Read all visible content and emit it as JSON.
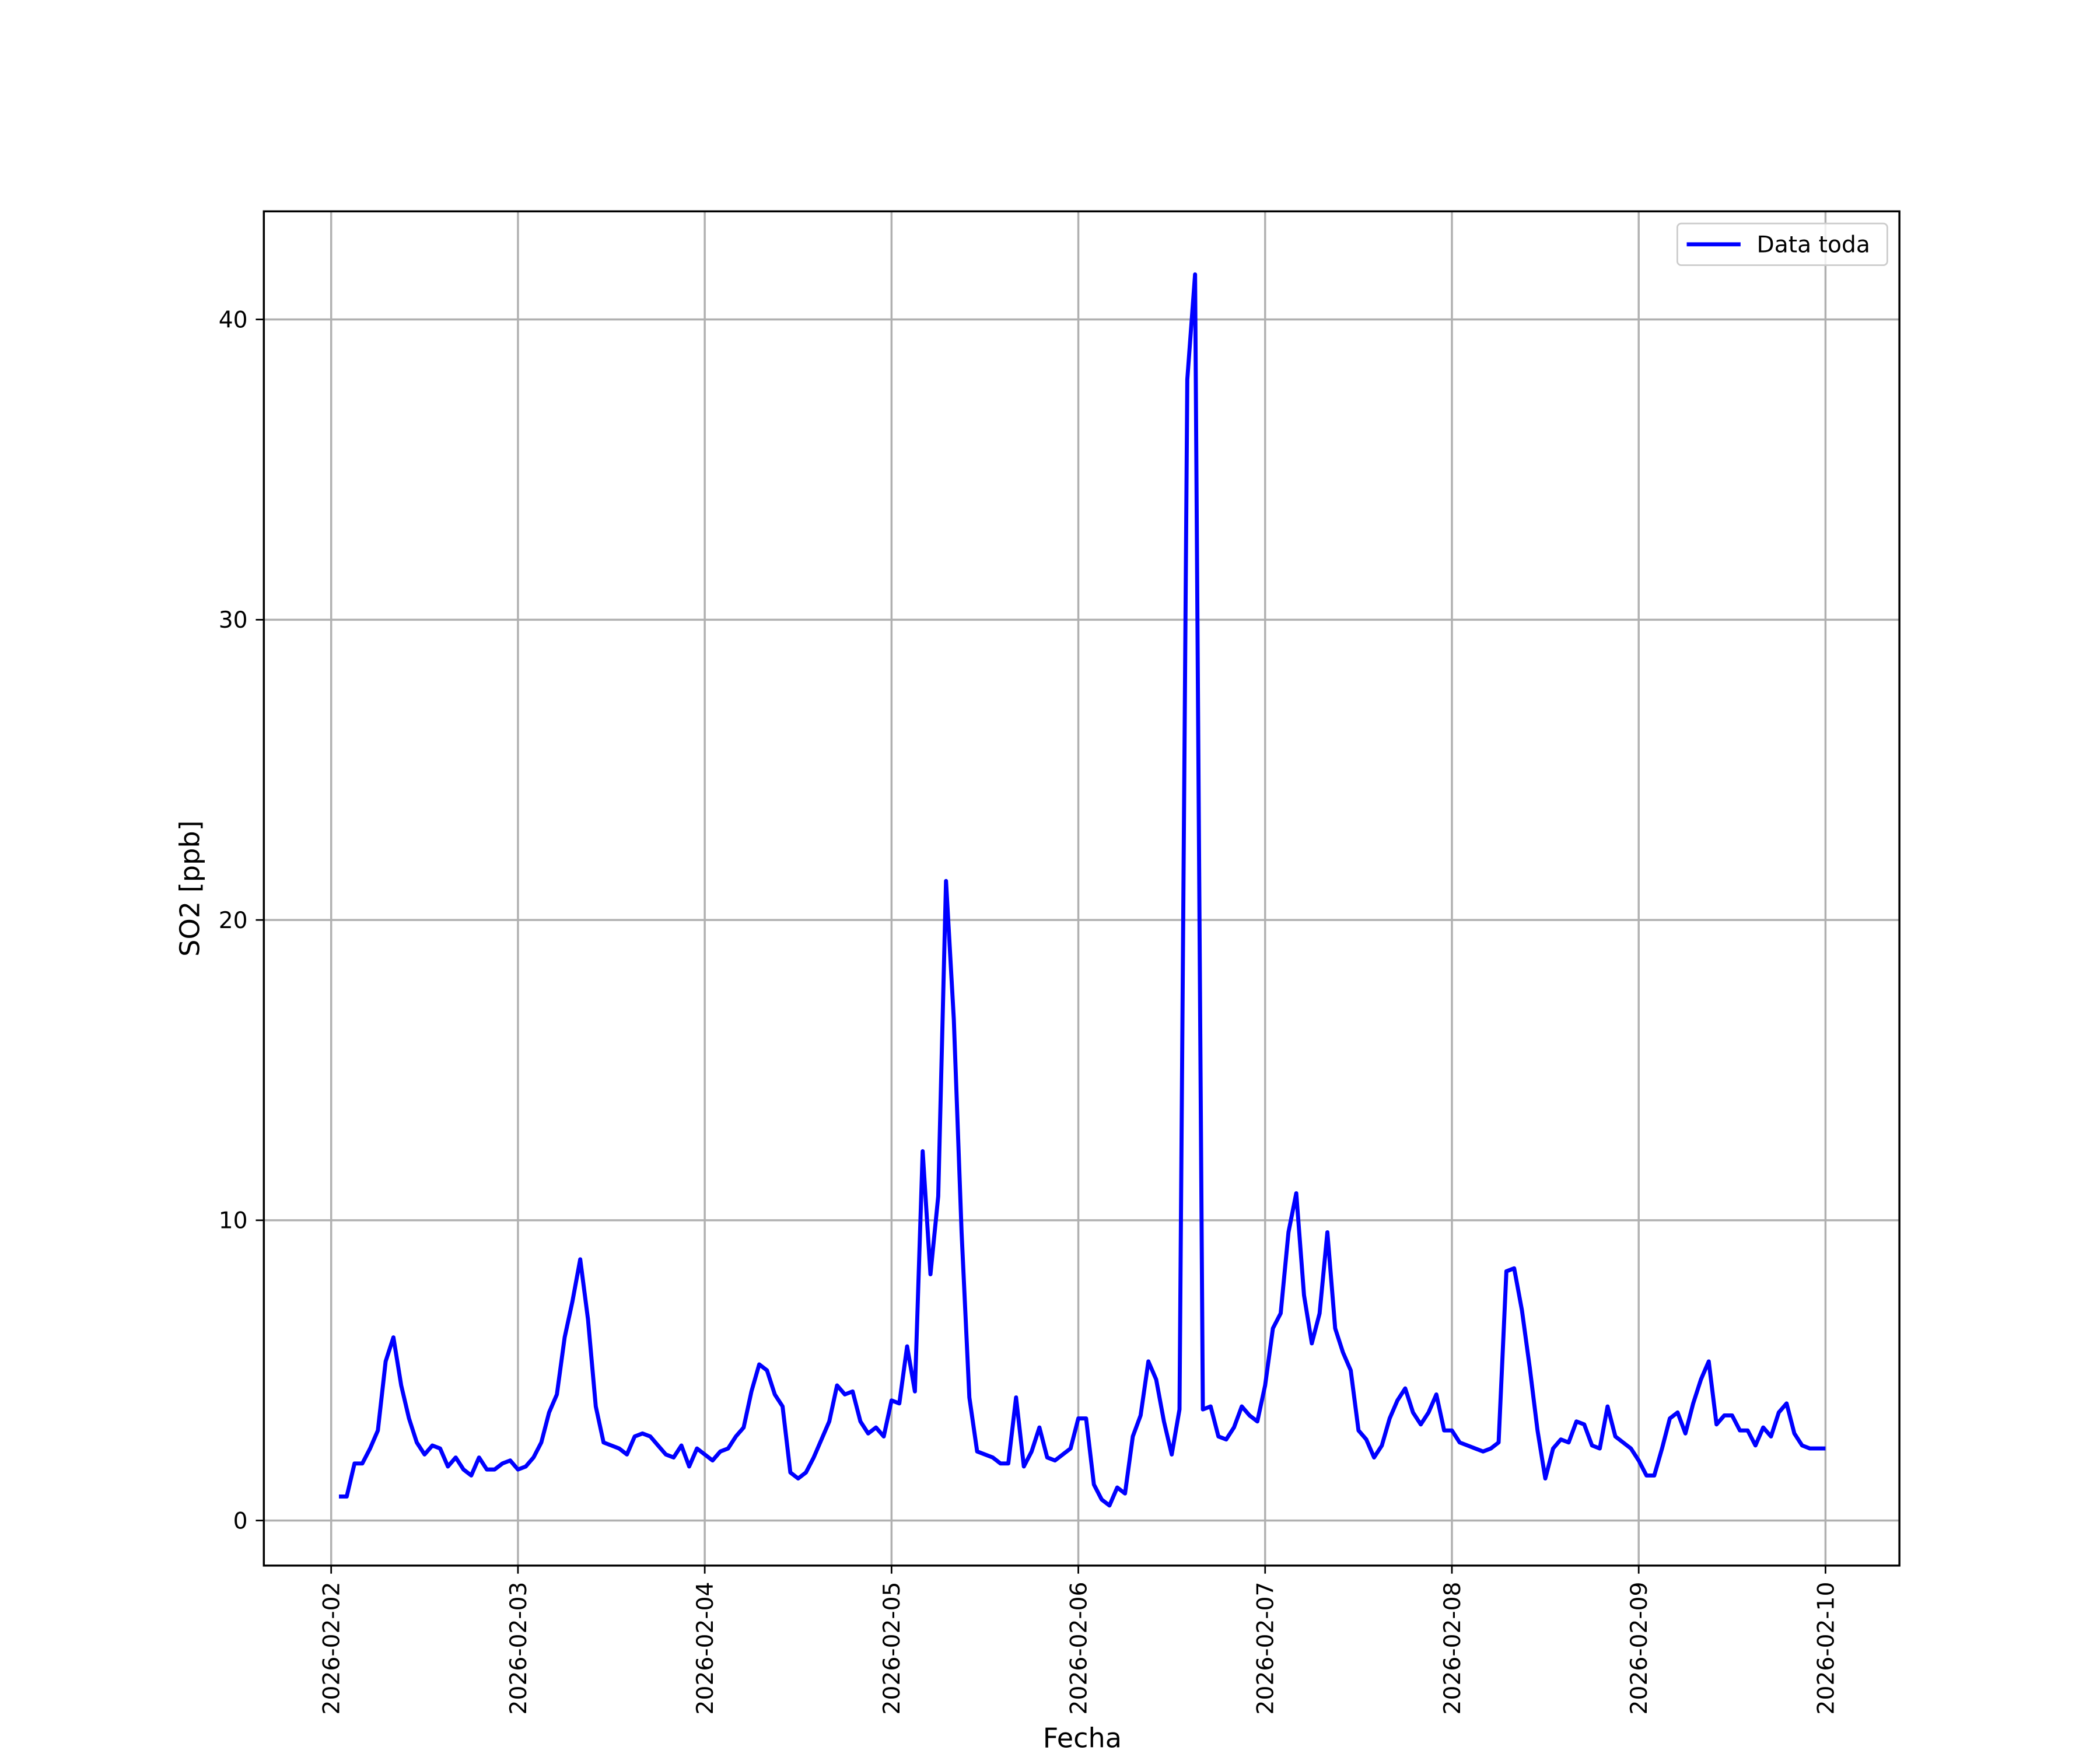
{
  "chart_data": {
    "type": "line",
    "x_label": "Fecha",
    "y_label": "SO2 [ppb]",
    "x": [
      "2026-02-02T01:00",
      "2026-02-02T02:00",
      "2026-02-02T03:00",
      "2026-02-02T04:00",
      "2026-02-02T05:00",
      "2026-02-02T06:00",
      "2026-02-02T07:00",
      "2026-02-02T08:00",
      "2026-02-02T09:00",
      "2026-02-02T10:00",
      "2026-02-02T11:00",
      "2026-02-02T12:00",
      "2026-02-02T13:00",
      "2026-02-02T14:00",
      "2026-02-02T15:00",
      "2026-02-02T16:00",
      "2026-02-02T17:00",
      "2026-02-02T18:00",
      "2026-02-02T19:00",
      "2026-02-02T20:00",
      "2026-02-02T21:00",
      "2026-02-02T22:00",
      "2026-02-02T23:00",
      "2026-02-03T00:00",
      "2026-02-03T01:00",
      "2026-02-03T02:00",
      "2026-02-03T03:00",
      "2026-02-03T04:00",
      "2026-02-03T05:00",
      "2026-02-03T06:00",
      "2026-02-03T07:00",
      "2026-02-03T08:00",
      "2026-02-03T09:00",
      "2026-02-03T10:00",
      "2026-02-03T11:00",
      "2026-02-03T12:00",
      "2026-02-03T13:00",
      "2026-02-03T14:00",
      "2026-02-03T15:00",
      "2026-02-03T16:00",
      "2026-02-03T17:00",
      "2026-02-03T18:00",
      "2026-02-03T19:00",
      "2026-02-03T20:00",
      "2026-02-03T21:00",
      "2026-02-03T22:00",
      "2026-02-03T23:00",
      "2026-02-04T00:00",
      "2026-02-04T01:00",
      "2026-02-04T02:00",
      "2026-02-04T03:00",
      "2026-02-04T04:00",
      "2026-02-04T05:00",
      "2026-02-04T06:00",
      "2026-02-04T07:00",
      "2026-02-04T08:00",
      "2026-02-04T09:00",
      "2026-02-04T10:00",
      "2026-02-04T11:00",
      "2026-02-04T12:00",
      "2026-02-04T13:00",
      "2026-02-04T14:00",
      "2026-02-04T15:00",
      "2026-02-04T16:00",
      "2026-02-04T17:00",
      "2026-02-04T18:00",
      "2026-02-04T19:00",
      "2026-02-04T20:00",
      "2026-02-04T21:00",
      "2026-02-04T22:00",
      "2026-02-04T23:00",
      "2026-02-05T00:00",
      "2026-02-05T01:00",
      "2026-02-05T02:00",
      "2026-02-05T03:00",
      "2026-02-05T04:00",
      "2026-02-05T05:00",
      "2026-02-05T06:00",
      "2026-02-05T07:00",
      "2026-02-05T08:00",
      "2026-02-05T09:00",
      "2026-02-05T10:00",
      "2026-02-05T11:00",
      "2026-02-05T12:00",
      "2026-02-05T13:00",
      "2026-02-05T14:00",
      "2026-02-05T15:00",
      "2026-02-05T16:00",
      "2026-02-05T17:00",
      "2026-02-05T18:00",
      "2026-02-05T19:00",
      "2026-02-05T20:00",
      "2026-02-05T21:00",
      "2026-02-05T22:00",
      "2026-02-05T23:00",
      "2026-02-06T00:00",
      "2026-02-06T01:00",
      "2026-02-06T02:00",
      "2026-02-06T03:00",
      "2026-02-06T04:00",
      "2026-02-06T05:00",
      "2026-02-06T06:00",
      "2026-02-06T07:00",
      "2026-02-06T08:00",
      "2026-02-06T09:00",
      "2026-02-06T10:00",
      "2026-02-06T11:00",
      "2026-02-06T12:00",
      "2026-02-06T13:00",
      "2026-02-06T14:00",
      "2026-02-06T15:00",
      "2026-02-06T16:00",
      "2026-02-06T17:00",
      "2026-02-06T18:00",
      "2026-02-06T19:00",
      "2026-02-06T20:00",
      "2026-02-06T21:00",
      "2026-02-06T22:00",
      "2026-02-06T23:00",
      "2026-02-07T00:00",
      "2026-02-07T01:00",
      "2026-02-07T02:00",
      "2026-02-07T03:00",
      "2026-02-07T04:00",
      "2026-02-07T05:00",
      "2026-02-07T06:00",
      "2026-02-07T07:00",
      "2026-02-07T08:00",
      "2026-02-07T09:00",
      "2026-02-07T10:00",
      "2026-02-07T11:00",
      "2026-02-07T12:00",
      "2026-02-07T13:00",
      "2026-02-07T14:00",
      "2026-02-07T15:00",
      "2026-02-07T16:00",
      "2026-02-07T17:00",
      "2026-02-07T18:00",
      "2026-02-07T19:00",
      "2026-02-07T20:00",
      "2026-02-07T21:00",
      "2026-02-07T22:00",
      "2026-02-07T23:00",
      "2026-02-08T00:00",
      "2026-02-08T01:00",
      "2026-02-08T02:00",
      "2026-02-08T03:00",
      "2026-02-08T04:00",
      "2026-02-08T05:00",
      "2026-02-08T06:00",
      "2026-02-08T07:00",
      "2026-02-08T08:00",
      "2026-02-08T09:00",
      "2026-02-08T10:00",
      "2026-02-08T11:00",
      "2026-02-08T12:00",
      "2026-02-08T13:00",
      "2026-02-08T14:00",
      "2026-02-08T15:00",
      "2026-02-08T16:00",
      "2026-02-08T17:00",
      "2026-02-08T18:00",
      "2026-02-08T19:00",
      "2026-02-08T20:00",
      "2026-02-08T21:00",
      "2026-02-08T22:00",
      "2026-02-08T23:00",
      "2026-02-09T00:00",
      "2026-02-09T01:00",
      "2026-02-09T02:00",
      "2026-02-09T03:00",
      "2026-02-09T04:00",
      "2026-02-09T05:00",
      "2026-02-09T06:00",
      "2026-02-09T07:00",
      "2026-02-09T08:00",
      "2026-02-09T09:00",
      "2026-02-09T10:00",
      "2026-02-09T11:00",
      "2026-02-09T12:00",
      "2026-02-09T13:00",
      "2026-02-09T14:00",
      "2026-02-09T15:00",
      "2026-02-09T16:00",
      "2026-02-09T17:00",
      "2026-02-09T18:00",
      "2026-02-09T19:00",
      "2026-02-09T20:00",
      "2026-02-09T21:00",
      "2026-02-09T22:00",
      "2026-02-09T23:00",
      "2026-02-10T00:00"
    ],
    "series": [
      {
        "name": "Data toda",
        "color": "#0000ff",
        "values": [
          0.8,
          0.8,
          1.9,
          1.9,
          2.4,
          3.0,
          5.3,
          6.1,
          4.5,
          3.4,
          2.6,
          2.2,
          2.5,
          2.4,
          1.8,
          2.1,
          1.7,
          1.5,
          2.1,
          1.7,
          1.7,
          1.9,
          2.0,
          1.7,
          1.8,
          2.1,
          2.6,
          3.6,
          4.2,
          6.1,
          7.3,
          8.7,
          6.7,
          3.8,
          2.6,
          2.5,
          2.4,
          2.2,
          2.8,
          2.9,
          2.8,
          2.5,
          2.2,
          2.1,
          2.5,
          1.8,
          2.4,
          2.2,
          2.0,
          2.3,
          2.4,
          2.8,
          3.1,
          4.3,
          5.2,
          5.0,
          4.2,
          3.8,
          1.6,
          1.4,
          1.6,
          2.1,
          2.7,
          3.3,
          4.5,
          4.2,
          4.3,
          3.3,
          2.9,
          3.1,
          2.8,
          4.0,
          3.9,
          5.8,
          4.3,
          12.3,
          8.2,
          10.8,
          21.3,
          16.7,
          9.6,
          4.1,
          2.3,
          2.2,
          2.1,
          1.9,
          1.9,
          4.1,
          1.8,
          2.3,
          3.1,
          2.1,
          2.0,
          2.2,
          2.4,
          3.4,
          3.4,
          1.2,
          0.7,
          0.5,
          1.1,
          0.9,
          2.8,
          3.5,
          5.3,
          4.7,
          3.3,
          2.2,
          3.7,
          38.0,
          41.5,
          3.7,
          3.8,
          2.8,
          2.7,
          3.1,
          3.8,
          3.5,
          3.3,
          4.5,
          6.4,
          6.9,
          9.6,
          10.9,
          7.5,
          5.9,
          6.9,
          9.6,
          6.4,
          5.6,
          5.0,
          3.0,
          2.7,
          2.1,
          2.5,
          3.4,
          4.0,
          4.4,
          3.6,
          3.2,
          3.6,
          4.2,
          3.0,
          3.0,
          2.6,
          2.5,
          2.4,
          2.3,
          2.4,
          2.6,
          8.3,
          8.4,
          7.0,
          5.1,
          3.0,
          1.4,
          2.4,
          2.7,
          2.6,
          3.3,
          3.2,
          2.5,
          2.4,
          3.8,
          2.8,
          2.6,
          2.4,
          2.0,
          1.5,
          1.5,
          2.4,
          3.4,
          3.6,
          2.9,
          3.9,
          4.7,
          5.3,
          3.2,
          3.5,
          3.5,
          3.0,
          3.0,
          2.5,
          3.1,
          2.8,
          3.6,
          3.9,
          2.9,
          2.5,
          2.4,
          2.4,
          2.4
        ]
      }
    ],
    "xlim": [
      "2026-02-01T15:21",
      "2026-02-10T09:30"
    ],
    "xticks": [
      "2026-02-02",
      "2026-02-03",
      "2026-02-04",
      "2026-02-05",
      "2026-02-06",
      "2026-02-07",
      "2026-02-08",
      "2026-02-09",
      "2026-02-10"
    ],
    "ylim": [
      -1.5,
      43.6
    ],
    "yticks": [
      0,
      10,
      20,
      30,
      40
    ],
    "grid": true,
    "legend": "upper right"
  }
}
